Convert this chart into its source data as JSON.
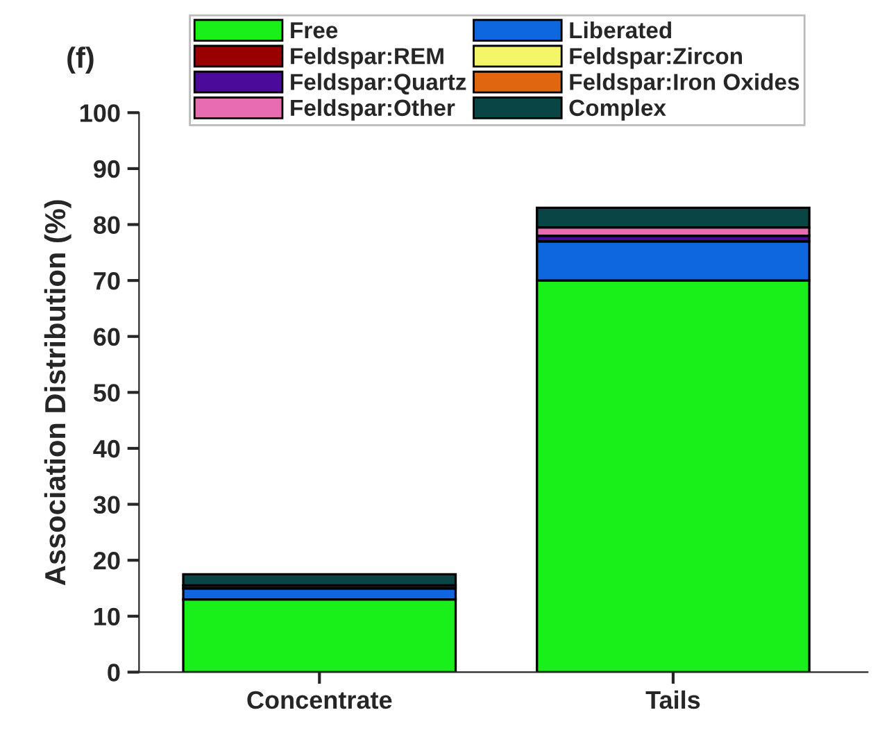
{
  "chart_data": {
    "type": "bar",
    "stacked": true,
    "ylabel": "Association Distribution (%)",
    "categories": [
      "Concentrate",
      "Tails"
    ],
    "series": [
      {
        "name": "Free",
        "color": "#19f019",
        "values": [
          13,
          70
        ]
      },
      {
        "name": "Liberated",
        "color": "#0f67e0",
        "values": [
          2,
          7
        ]
      },
      {
        "name": "Feldspar:REM",
        "color": "#990000",
        "values": [
          0,
          0
        ]
      },
      {
        "name": "Feldspar:Zircon",
        "color": "#f5f56a",
        "values": [
          0,
          0
        ]
      },
      {
        "name": "Feldspar:Quartz",
        "color": "#4b0a99",
        "values": [
          0.5,
          1
        ]
      },
      {
        "name": "Feldspar:Iron Oxides",
        "color": "#e06610",
        "values": [
          0,
          0
        ]
      },
      {
        "name": "Feldspar:Other",
        "color": "#e86cb0",
        "values": [
          0,
          1.5
        ]
      },
      {
        "name": "Complex",
        "color": "#0a4545",
        "values": [
          2,
          3.5
        ]
      }
    ],
    "ylim": [
      0,
      100
    ],
    "yticks": [
      0,
      10,
      20,
      30,
      40,
      50,
      60,
      70,
      80,
      90,
      100
    ],
    "legend": "top",
    "grid": false,
    "annotations": [
      "(f)"
    ]
  }
}
